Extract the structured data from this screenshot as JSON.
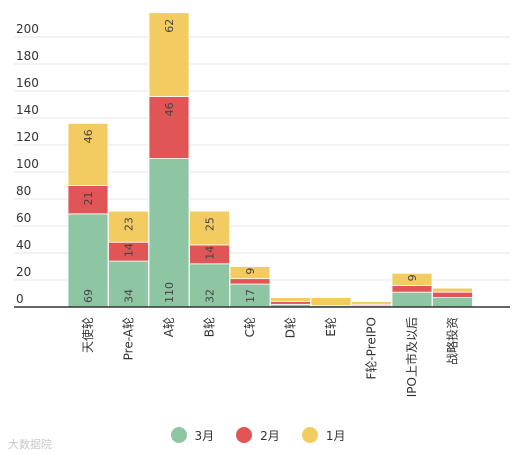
{
  "chart_data": {
    "type": "bar",
    "stacked": true,
    "categories": [
      "天使轮",
      "Pre-A轮",
      "A轮",
      "B轮",
      "C轮",
      "D轮",
      "E轮",
      "F轮-PreIPO",
      "IPO上市及以后",
      "战略投资"
    ],
    "series": [
      {
        "name": "3月",
        "color": "#8ec6a3",
        "values": [
          69,
          34,
          110,
          32,
          17,
          2,
          1,
          1,
          11,
          7
        ]
      },
      {
        "name": "2月",
        "color": "#e05555",
        "values": [
          21,
          14,
          46,
          14,
          4,
          2,
          0,
          1,
          5,
          4
        ]
      },
      {
        "name": "1月",
        "color": "#f2cc61",
        "values": [
          46,
          23,
          62,
          25,
          9,
          3,
          6,
          2,
          9,
          3
        ]
      }
    ],
    "data_labels": [
      [
        "69",
        "34",
        "110",
        "32",
        "17",
        "",
        "",
        "",
        "",
        ""
      ],
      [
        "21",
        "14",
        "46",
        "14",
        "",
        "",
        "",
        "",
        "",
        ""
      ],
      [
        "46",
        "23",
        "62",
        "25",
        "9",
        "",
        "",
        "",
        "9",
        ""
      ]
    ],
    "y_ticks": [
      0,
      20,
      40,
      60,
      80,
      100,
      120,
      140,
      160,
      180,
      200
    ],
    "ylim": [
      0,
      220
    ],
    "grid": true,
    "legend_position": "bottom"
  },
  "watermark": "大数据院"
}
